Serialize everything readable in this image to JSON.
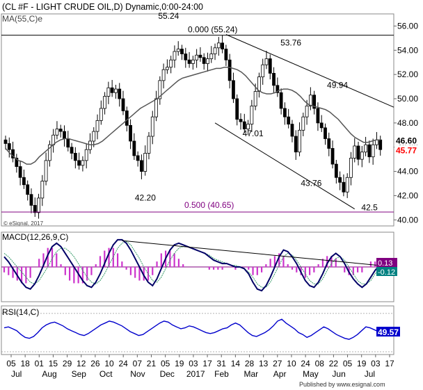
{
  "chart_data": {
    "type": "candlestick",
    "main_panel": {
      "title": "(CL #F - LIGHT CRUDE OIL,D) Dynamic,0:00-24:00",
      "ma_label": "MA(55,C)e",
      "watermark": "© eSignal, 2017",
      "ylim": [
        39.5,
        57.0
      ],
      "y_ticks": [
        40.0,
        42.0,
        44.0,
        46.0,
        48.0,
        50.0,
        52.0,
        54.0,
        56.0
      ],
      "y_tick_labels": [
        "40.00",
        "42.00",
        "44.00",
        "46.00",
        "48.00",
        "50.00",
        "52.00",
        "54.00",
        "56.00"
      ],
      "price_tags": [
        {
          "label": "46.60",
          "value": 46.6,
          "color": "#000000"
        },
        {
          "label": "45.77",
          "value": 45.77,
          "color": "#ff0000"
        }
      ],
      "annotations": [
        {
          "text": "55.24",
          "x": 56,
          "y": 56.6
        },
        {
          "text": "53.76",
          "x": 98,
          "y": 54.4
        },
        {
          "text": "49.94",
          "x": 114,
          "y": 50.9
        },
        {
          "text": "47.01",
          "x": 85,
          "y": 46.9
        },
        {
          "text": "43.76",
          "x": 105,
          "y": 42.8
        },
        {
          "text": "42.20",
          "x": 48,
          "y": 41.6
        },
        {
          "text": "42.5",
          "x": 125,
          "y": 40.8
        }
      ],
      "fib_levels": [
        {
          "label": "0.000 (55.24)",
          "value": 55.24,
          "color": "#000000"
        },
        {
          "label": "0.500 (40.65)",
          "value": 40.65,
          "color": "#800080"
        }
      ]
    },
    "x_tick_labels": [
      "05",
      "18",
      "01",
      "15",
      "29",
      "12",
      "26",
      "10",
      "24",
      "07",
      "21",
      "05",
      "19",
      "03",
      "17",
      "31",
      "14",
      "28",
      "13",
      "27",
      "10",
      "24",
      "08",
      "22",
      "05",
      "19",
      "03",
      "17"
    ],
    "month_labels": [
      "Jul",
      "Aug",
      "Sep",
      "Oct",
      "Nov",
      "Dec",
      "2017",
      "Feb",
      "Mar",
      "Apr",
      "May",
      "Jun",
      "Jul"
    ],
    "series": [
      {
        "name": "Price",
        "values": [
          46.3,
          45.8,
          45.1,
          44.4,
          43.5,
          42.9,
          42.1,
          41.2,
          40.6,
          41.8,
          43.2,
          44.9,
          46.2,
          47.0,
          47.5,
          47.3,
          46.7,
          46.0,
          45.5,
          44.9,
          44.5,
          44.9,
          45.8,
          46.5,
          47.3,
          48.2,
          49.2,
          50.2,
          50.9,
          50.5,
          50.8,
          50.0,
          49.0,
          47.8,
          46.5,
          45.3,
          44.9,
          44.0,
          45.5,
          46.9,
          48.5,
          50.0,
          51.5,
          52.4,
          52.6,
          53.2,
          53.9,
          54.1,
          53.7,
          53.2,
          52.9,
          53.2,
          53.6,
          53.4,
          52.9,
          53.3,
          53.7,
          54.2,
          54.6,
          54.1,
          53.2,
          51.5,
          50.0,
          48.3,
          48.1,
          47.5,
          47.9,
          49.4,
          50.6,
          51.8,
          52.8,
          53.3,
          52.1,
          51.1,
          50.5,
          49.2,
          48.5,
          47.9,
          46.9,
          45.6,
          47.4,
          48.5,
          49.4,
          50.3,
          49.2,
          48.0,
          47.6,
          46.7,
          45.9,
          44.6,
          43.5,
          43.1,
          42.3,
          43.5,
          45.1,
          46.1,
          45.0,
          45.6,
          46.2,
          45.2,
          46.2,
          46.6,
          45.8
        ]
      },
      {
        "name": "MA(55,C)e",
        "values": [
          45.9,
          45.5,
          45.2,
          44.9,
          44.8,
          44.6,
          44.6,
          44.8,
          45.2,
          45.5,
          45.8,
          46.1,
          46.4,
          46.6,
          46.7,
          46.7,
          46.6,
          46.5,
          46.4,
          46.3,
          46.2,
          46.2,
          46.3,
          46.5,
          46.8,
          47.1,
          47.4,
          47.7,
          48.0,
          48.3,
          48.6,
          48.9,
          49.2,
          49.4,
          49.6,
          49.8,
          50.0,
          50.3,
          50.6,
          50.9,
          51.2,
          51.5,
          51.7,
          51.8,
          51.9,
          52.0,
          52.1,
          52.2,
          52.3,
          52.4,
          52.5,
          52.5,
          52.6,
          52.6,
          52.5,
          52.4,
          52.2,
          51.9,
          51.5,
          51.1,
          50.7,
          50.5,
          50.4,
          50.4,
          50.5,
          50.7,
          50.8,
          50.8,
          50.7,
          50.5,
          50.2,
          49.8,
          49.5,
          49.4,
          49.3,
          49.2,
          49.1,
          48.9,
          48.6,
          48.3,
          47.9,
          47.5,
          47.1,
          46.8,
          46.6,
          46.4,
          46.4,
          46.5,
          46.6,
          46.6
        ]
      }
    ],
    "macd_panel": {
      "label": "MACD(12,26,9,C)",
      "value_tags": [
        {
          "label": "0.13",
          "color": "#800080"
        },
        {
          "label": "-0.12",
          "color": "#008080"
        }
      ],
      "macd_values": [
        0.6,
        0.3,
        -0.1,
        -0.5,
        -0.9,
        -1.2,
        -1.3,
        -1.0,
        -0.5,
        0.1,
        0.7,
        1.2,
        1.4,
        1.2,
        0.8,
        0.4,
        0.0,
        -0.4,
        -0.8,
        -1.1,
        -1.2,
        -0.9,
        -0.4,
        0.2,
        0.8,
        1.3,
        1.6,
        1.6,
        1.4,
        1.0,
        0.5,
        0.0,
        -0.5,
        -0.9,
        -1.1,
        -0.7,
        -0.1,
        0.5,
        1.0,
        1.3,
        1.4,
        1.3,
        1.2,
        1.1,
        1.0,
        0.9,
        0.8,
        0.6,
        0.4,
        0.3,
        0.2,
        0.2,
        0.1,
        0.0,
        0.0,
        -0.1,
        -0.4,
        -0.9,
        -1.3,
        -1.4,
        -1.1,
        -0.6,
        0.0,
        0.6,
        1.0,
        0.9,
        0.6,
        0.2,
        -0.3,
        -0.8,
        -1.1,
        -1.2,
        -0.9,
        -0.4,
        0.2,
        0.6,
        0.8,
        0.6,
        0.2,
        -0.3,
        -0.7,
        -1.0,
        -1.2,
        -1.0,
        -0.6,
        -0.2,
        0.1,
        0.4,
        0.1
      ],
      "signal_values": [
        0.8,
        0.6,
        0.3,
        0.0,
        -0.3,
        -0.6,
        -0.9,
        -1.0,
        -0.8,
        -0.4,
        0.0,
        0.5,
        0.9,
        1.1,
        1.1,
        0.9,
        0.6,
        0.2,
        -0.2,
        -0.6,
        -0.9,
        -1.0,
        -0.8,
        -0.4,
        0.1,
        0.6,
        1.1,
        1.4,
        1.5,
        1.3,
        0.9,
        0.5,
        0.0,
        -0.4,
        -0.8,
        -0.9,
        -0.6,
        -0.1,
        0.4,
        0.8,
        1.1,
        1.2,
        1.2,
        1.1,
        1.0,
        0.9,
        0.8,
        0.7,
        0.5,
        0.4,
        0.3,
        0.2,
        0.1,
        0.1,
        0.0,
        -0.1,
        -0.3,
        -0.6,
        -1.0,
        -1.2,
        -1.2,
        -0.9,
        -0.4,
        0.1,
        0.6,
        0.8,
        0.7,
        0.4,
        0.0,
        -0.4,
        -0.8,
        -1.0,
        -1.0,
        -0.7,
        -0.2,
        0.2,
        0.5,
        0.6,
        0.4,
        0.0,
        -0.4,
        -0.8,
        -1.0,
        -1.0,
        -0.8,
        -0.4,
        -0.1,
        0.2,
        0.2
      ]
    },
    "rsi_panel": {
      "label": "RSI(14,C)",
      "value_tag": {
        "label": "49.57",
        "color": "#0000cc"
      },
      "values": [
        55,
        56,
        54,
        52,
        48,
        45,
        44,
        46,
        50,
        55,
        58,
        60,
        61,
        59,
        57,
        54,
        52,
        50,
        48,
        47,
        49,
        52,
        55,
        58,
        60,
        62,
        61,
        59,
        57,
        54,
        51,
        49,
        47,
        48,
        51,
        54,
        57,
        60,
        62,
        61,
        58,
        56,
        54,
        55,
        57,
        56,
        54,
        52,
        50,
        49,
        50,
        52,
        54,
        55,
        58,
        60,
        58,
        54,
        50,
        47,
        46,
        48,
        50,
        53,
        57,
        62,
        64,
        60,
        57,
        54,
        50,
        48,
        45,
        47,
        50,
        53,
        56,
        54,
        51,
        48,
        46,
        44,
        43,
        45,
        48,
        52,
        56,
        55,
        53,
        51
      ]
    }
  }
}
